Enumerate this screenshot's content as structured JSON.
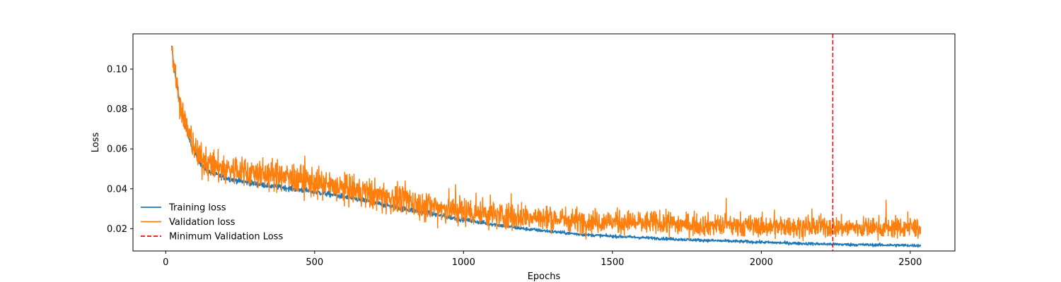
{
  "chart_data": {
    "type": "line",
    "xlabel": "Epochs",
    "ylabel": "Loss",
    "xlim": [
      -110,
      2650
    ],
    "ylim": [
      0.0088,
      0.1177
    ],
    "x_ticks": [
      0,
      500,
      1000,
      1500,
      2000,
      2500
    ],
    "x_tick_labels": [
      "0",
      "500",
      "1000",
      "1500",
      "2000",
      "2500"
    ],
    "y_ticks": [
      0.02,
      0.04,
      0.06,
      0.08,
      0.1
    ],
    "y_tick_labels": [
      "0.02",
      "0.04",
      "0.06",
      "0.08",
      "0.10"
    ],
    "grid": false,
    "legend_position": "lower-left",
    "series": [
      {
        "name": "Training loss",
        "color": "#1f77b4",
        "style": "solid",
        "x": [
          20,
          30,
          40,
          50,
          60,
          80,
          100,
          120,
          150,
          200,
          250,
          300,
          400,
          500,
          600,
          700,
          800,
          900,
          1000,
          1100,
          1200,
          1300,
          1400,
          1500,
          1600,
          1700,
          1800,
          1900,
          2000,
          2100,
          2200,
          2300,
          2400,
          2535
        ],
        "y": [
          0.111,
          0.099,
          0.089,
          0.081,
          0.074,
          0.064,
          0.057,
          0.052,
          0.048,
          0.0455,
          0.0438,
          0.0425,
          0.0405,
          0.0385,
          0.036,
          0.033,
          0.03,
          0.0272,
          0.0245,
          0.0222,
          0.02,
          0.0185,
          0.017,
          0.0162,
          0.0155,
          0.0148,
          0.0142,
          0.0137,
          0.0132,
          0.0127,
          0.0123,
          0.012,
          0.0118,
          0.0115
        ],
        "noise": 0.0007
      },
      {
        "name": "Validation loss",
        "color": "#ff7f0e",
        "style": "solid",
        "x": [
          20,
          30,
          40,
          50,
          60,
          80,
          100,
          120,
          150,
          200,
          250,
          300,
          350,
          400,
          500,
          600,
          700,
          800,
          900,
          1000,
          1100,
          1200,
          1300,
          1400,
          1500,
          1600,
          1700,
          1800,
          1900,
          2000,
          2100,
          2200,
          2300,
          2400,
          2535
        ],
        "y": [
          0.112,
          0.1,
          0.09,
          0.082,
          0.076,
          0.066,
          0.059,
          0.055,
          0.052,
          0.05,
          0.049,
          0.048,
          0.047,
          0.046,
          0.043,
          0.04,
          0.037,
          0.034,
          0.031,
          0.029,
          0.027,
          0.026,
          0.025,
          0.024,
          0.0235,
          0.023,
          0.0225,
          0.022,
          0.0215,
          0.021,
          0.021,
          0.021,
          0.0205,
          0.0205,
          0.0205
        ],
        "noise": 0.0038
      },
      {
        "name": "Minimum Validation Loss",
        "color": "#ff0000",
        "style": "dashed-vertical",
        "x_value": 2240
      }
    ]
  }
}
